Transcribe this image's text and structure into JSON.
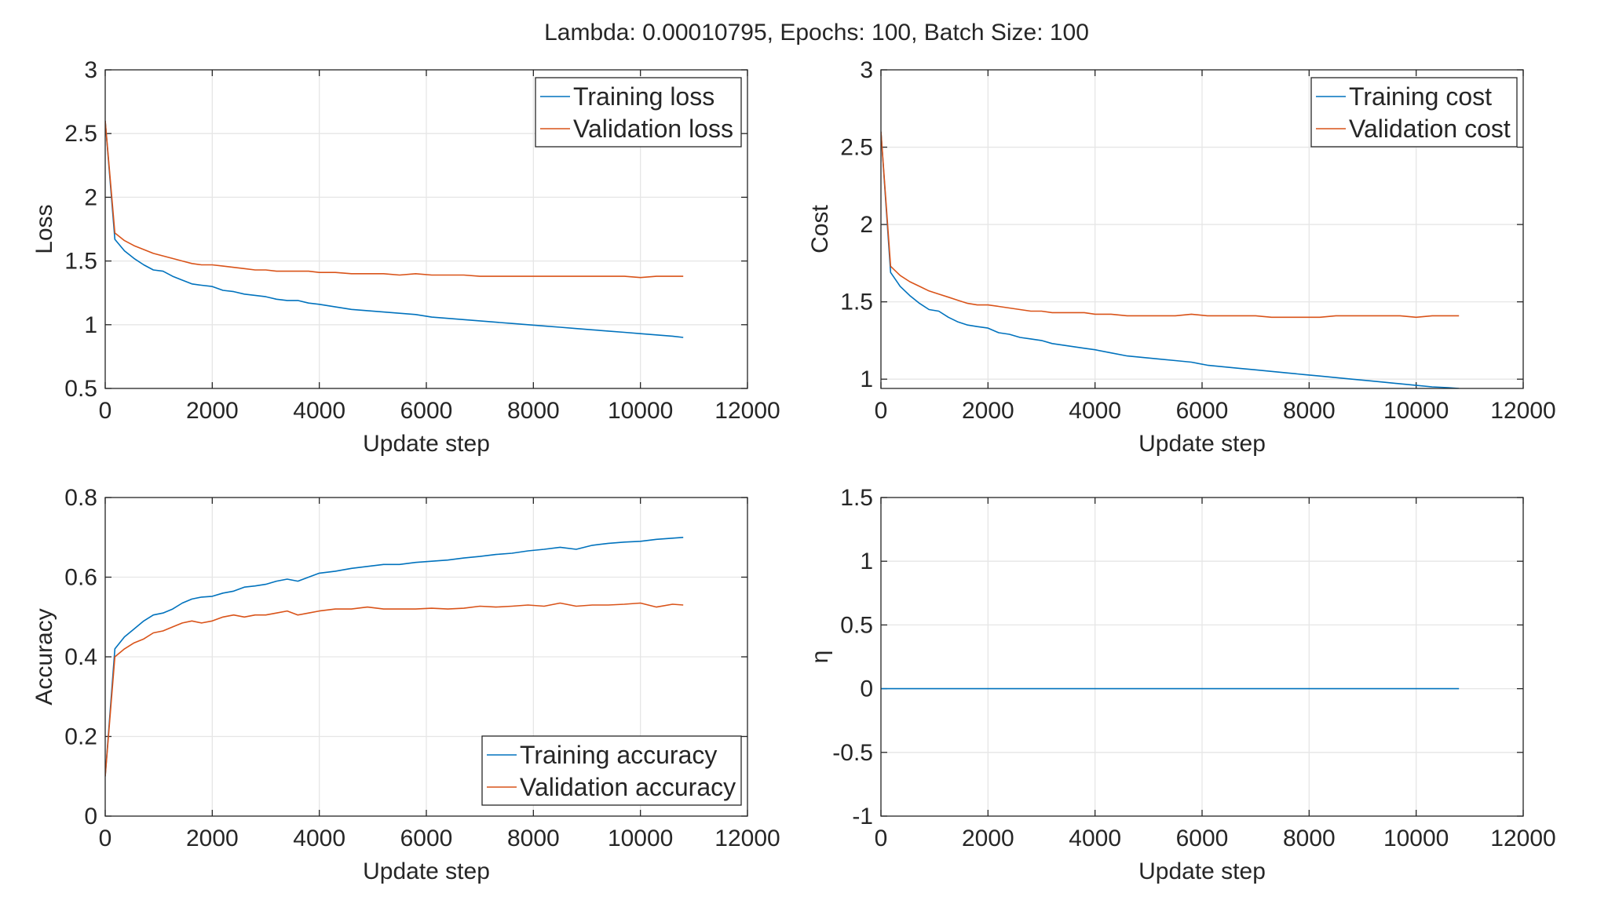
{
  "figure_title": "Lambda: 0.00010795, Epochs: 100, Batch Size: 100",
  "colors": {
    "series1": "#0072bd",
    "series2": "#d95319",
    "grid": "#e6e6e6",
    "axes": "#262626"
  },
  "chart_data": [
    {
      "type": "line",
      "xlabel": "Update step",
      "ylabel": "Loss",
      "xlim": [
        0,
        12000
      ],
      "ylim": [
        0.5,
        3
      ],
      "xticks": [
        0,
        2000,
        4000,
        6000,
        8000,
        10000,
        12000
      ],
      "yticks": [
        0.5,
        1,
        1.5,
        2,
        2.5,
        3
      ],
      "grid": true,
      "legend_position": "top-right",
      "x": [
        0,
        180,
        360,
        540,
        720,
        900,
        1080,
        1260,
        1440,
        1620,
        1800,
        2000,
        2200,
        2400,
        2600,
        2800,
        3000,
        3200,
        3400,
        3600,
        3800,
        4000,
        4300,
        4600,
        4900,
        5200,
        5500,
        5800,
        6100,
        6400,
        6700,
        7000,
        7300,
        7600,
        7900,
        8200,
        8500,
        8800,
        9100,
        9400,
        9700,
        10000,
        10300,
        10600,
        10800
      ],
      "series": [
        {
          "name": "Training loss",
          "values": [
            2.6,
            1.67,
            1.58,
            1.52,
            1.47,
            1.43,
            1.42,
            1.38,
            1.35,
            1.32,
            1.31,
            1.3,
            1.27,
            1.26,
            1.24,
            1.23,
            1.22,
            1.2,
            1.19,
            1.19,
            1.17,
            1.16,
            1.14,
            1.12,
            1.11,
            1.1,
            1.09,
            1.08,
            1.06,
            1.05,
            1.04,
            1.03,
            1.02,
            1.01,
            1.0,
            0.99,
            0.98,
            0.97,
            0.96,
            0.95,
            0.94,
            0.93,
            0.92,
            0.91,
            0.9
          ]
        },
        {
          "name": "Validation loss",
          "values": [
            2.6,
            1.72,
            1.66,
            1.62,
            1.59,
            1.56,
            1.54,
            1.52,
            1.5,
            1.48,
            1.47,
            1.47,
            1.46,
            1.45,
            1.44,
            1.43,
            1.43,
            1.42,
            1.42,
            1.42,
            1.42,
            1.41,
            1.41,
            1.4,
            1.4,
            1.4,
            1.39,
            1.4,
            1.39,
            1.39,
            1.39,
            1.38,
            1.38,
            1.38,
            1.38,
            1.38,
            1.38,
            1.38,
            1.38,
            1.38,
            1.38,
            1.37,
            1.38,
            1.38,
            1.38
          ]
        }
      ]
    },
    {
      "type": "line",
      "xlabel": "Update step",
      "ylabel": "Cost",
      "xlim": [
        0,
        12000
      ],
      "ylim": [
        0.94,
        3
      ],
      "xticks": [
        0,
        2000,
        4000,
        6000,
        8000,
        10000,
        12000
      ],
      "yticks": [
        1,
        1.5,
        2,
        2.5,
        3
      ],
      "grid": true,
      "legend_position": "top-right",
      "x": [
        0,
        180,
        360,
        540,
        720,
        900,
        1080,
        1260,
        1440,
        1620,
        1800,
        2000,
        2200,
        2400,
        2600,
        2800,
        3000,
        3200,
        3400,
        3600,
        3800,
        4000,
        4300,
        4600,
        4900,
        5200,
        5500,
        5800,
        6100,
        6400,
        6700,
        7000,
        7300,
        7600,
        7900,
        8200,
        8500,
        8800,
        9100,
        9400,
        9700,
        10000,
        10300,
        10600,
        10800
      ],
      "series": [
        {
          "name": "Training cost",
          "values": [
            2.6,
            1.69,
            1.6,
            1.54,
            1.49,
            1.45,
            1.44,
            1.4,
            1.37,
            1.35,
            1.34,
            1.33,
            1.3,
            1.29,
            1.27,
            1.26,
            1.25,
            1.23,
            1.22,
            1.21,
            1.2,
            1.19,
            1.17,
            1.15,
            1.14,
            1.13,
            1.12,
            1.11,
            1.09,
            1.08,
            1.07,
            1.06,
            1.05,
            1.04,
            1.03,
            1.02,
            1.01,
            1.0,
            0.99,
            0.98,
            0.97,
            0.96,
            0.95,
            0.945,
            0.94
          ]
        },
        {
          "name": "Validation cost",
          "values": [
            2.6,
            1.73,
            1.67,
            1.63,
            1.6,
            1.57,
            1.55,
            1.53,
            1.51,
            1.49,
            1.48,
            1.48,
            1.47,
            1.46,
            1.45,
            1.44,
            1.44,
            1.43,
            1.43,
            1.43,
            1.43,
            1.42,
            1.42,
            1.41,
            1.41,
            1.41,
            1.41,
            1.42,
            1.41,
            1.41,
            1.41,
            1.41,
            1.4,
            1.4,
            1.4,
            1.4,
            1.41,
            1.41,
            1.41,
            1.41,
            1.41,
            1.4,
            1.41,
            1.41,
            1.41
          ]
        }
      ]
    },
    {
      "type": "line",
      "xlabel": "Update step",
      "ylabel": "Accuracy",
      "xlim": [
        0,
        12000
      ],
      "ylim": [
        0,
        0.8
      ],
      "xticks": [
        0,
        2000,
        4000,
        6000,
        8000,
        10000,
        12000
      ],
      "yticks": [
        0,
        0.2,
        0.4,
        0.6,
        0.8
      ],
      "grid": true,
      "legend_position": "bottom-right",
      "x": [
        0,
        180,
        360,
        540,
        720,
        900,
        1080,
        1260,
        1440,
        1620,
        1800,
        2000,
        2200,
        2400,
        2600,
        2800,
        3000,
        3200,
        3400,
        3600,
        3800,
        4000,
        4300,
        4600,
        4900,
        5200,
        5500,
        5800,
        6100,
        6400,
        6700,
        7000,
        7300,
        7600,
        7900,
        8200,
        8500,
        8800,
        9100,
        9400,
        9700,
        10000,
        10300,
        10600,
        10800
      ],
      "series": [
        {
          "name": "Training accuracy",
          "values": [
            0.1,
            0.42,
            0.45,
            0.47,
            0.49,
            0.505,
            0.51,
            0.52,
            0.535,
            0.545,
            0.55,
            0.552,
            0.56,
            0.565,
            0.575,
            0.578,
            0.582,
            0.59,
            0.595,
            0.59,
            0.6,
            0.61,
            0.615,
            0.622,
            0.627,
            0.632,
            0.632,
            0.637,
            0.64,
            0.643,
            0.648,
            0.652,
            0.657,
            0.66,
            0.666,
            0.67,
            0.675,
            0.67,
            0.68,
            0.685,
            0.688,
            0.69,
            0.695,
            0.698,
            0.7
          ]
        },
        {
          "name": "Validation accuracy",
          "values": [
            0.1,
            0.4,
            0.42,
            0.435,
            0.445,
            0.46,
            0.465,
            0.475,
            0.485,
            0.49,
            0.485,
            0.49,
            0.5,
            0.505,
            0.5,
            0.505,
            0.505,
            0.51,
            0.515,
            0.505,
            0.51,
            0.515,
            0.52,
            0.52,
            0.525,
            0.52,
            0.52,
            0.52,
            0.522,
            0.52,
            0.522,
            0.527,
            0.525,
            0.527,
            0.53,
            0.527,
            0.535,
            0.527,
            0.53,
            0.53,
            0.532,
            0.535,
            0.525,
            0.532,
            0.53
          ]
        }
      ]
    },
    {
      "type": "line",
      "xlabel": "Update step",
      "ylabel": "η",
      "xlim": [
        0,
        12000
      ],
      "ylim": [
        -1,
        1.5
      ],
      "xticks": [
        0,
        2000,
        4000,
        6000,
        8000,
        10000,
        12000
      ],
      "yticks": [
        -1,
        -0.5,
        0,
        0.5,
        1,
        1.5
      ],
      "grid": true,
      "legend_position": "none",
      "x": [
        0,
        10800
      ],
      "series": [
        {
          "name": "",
          "values": [
            0.0,
            0.0
          ]
        }
      ]
    }
  ]
}
